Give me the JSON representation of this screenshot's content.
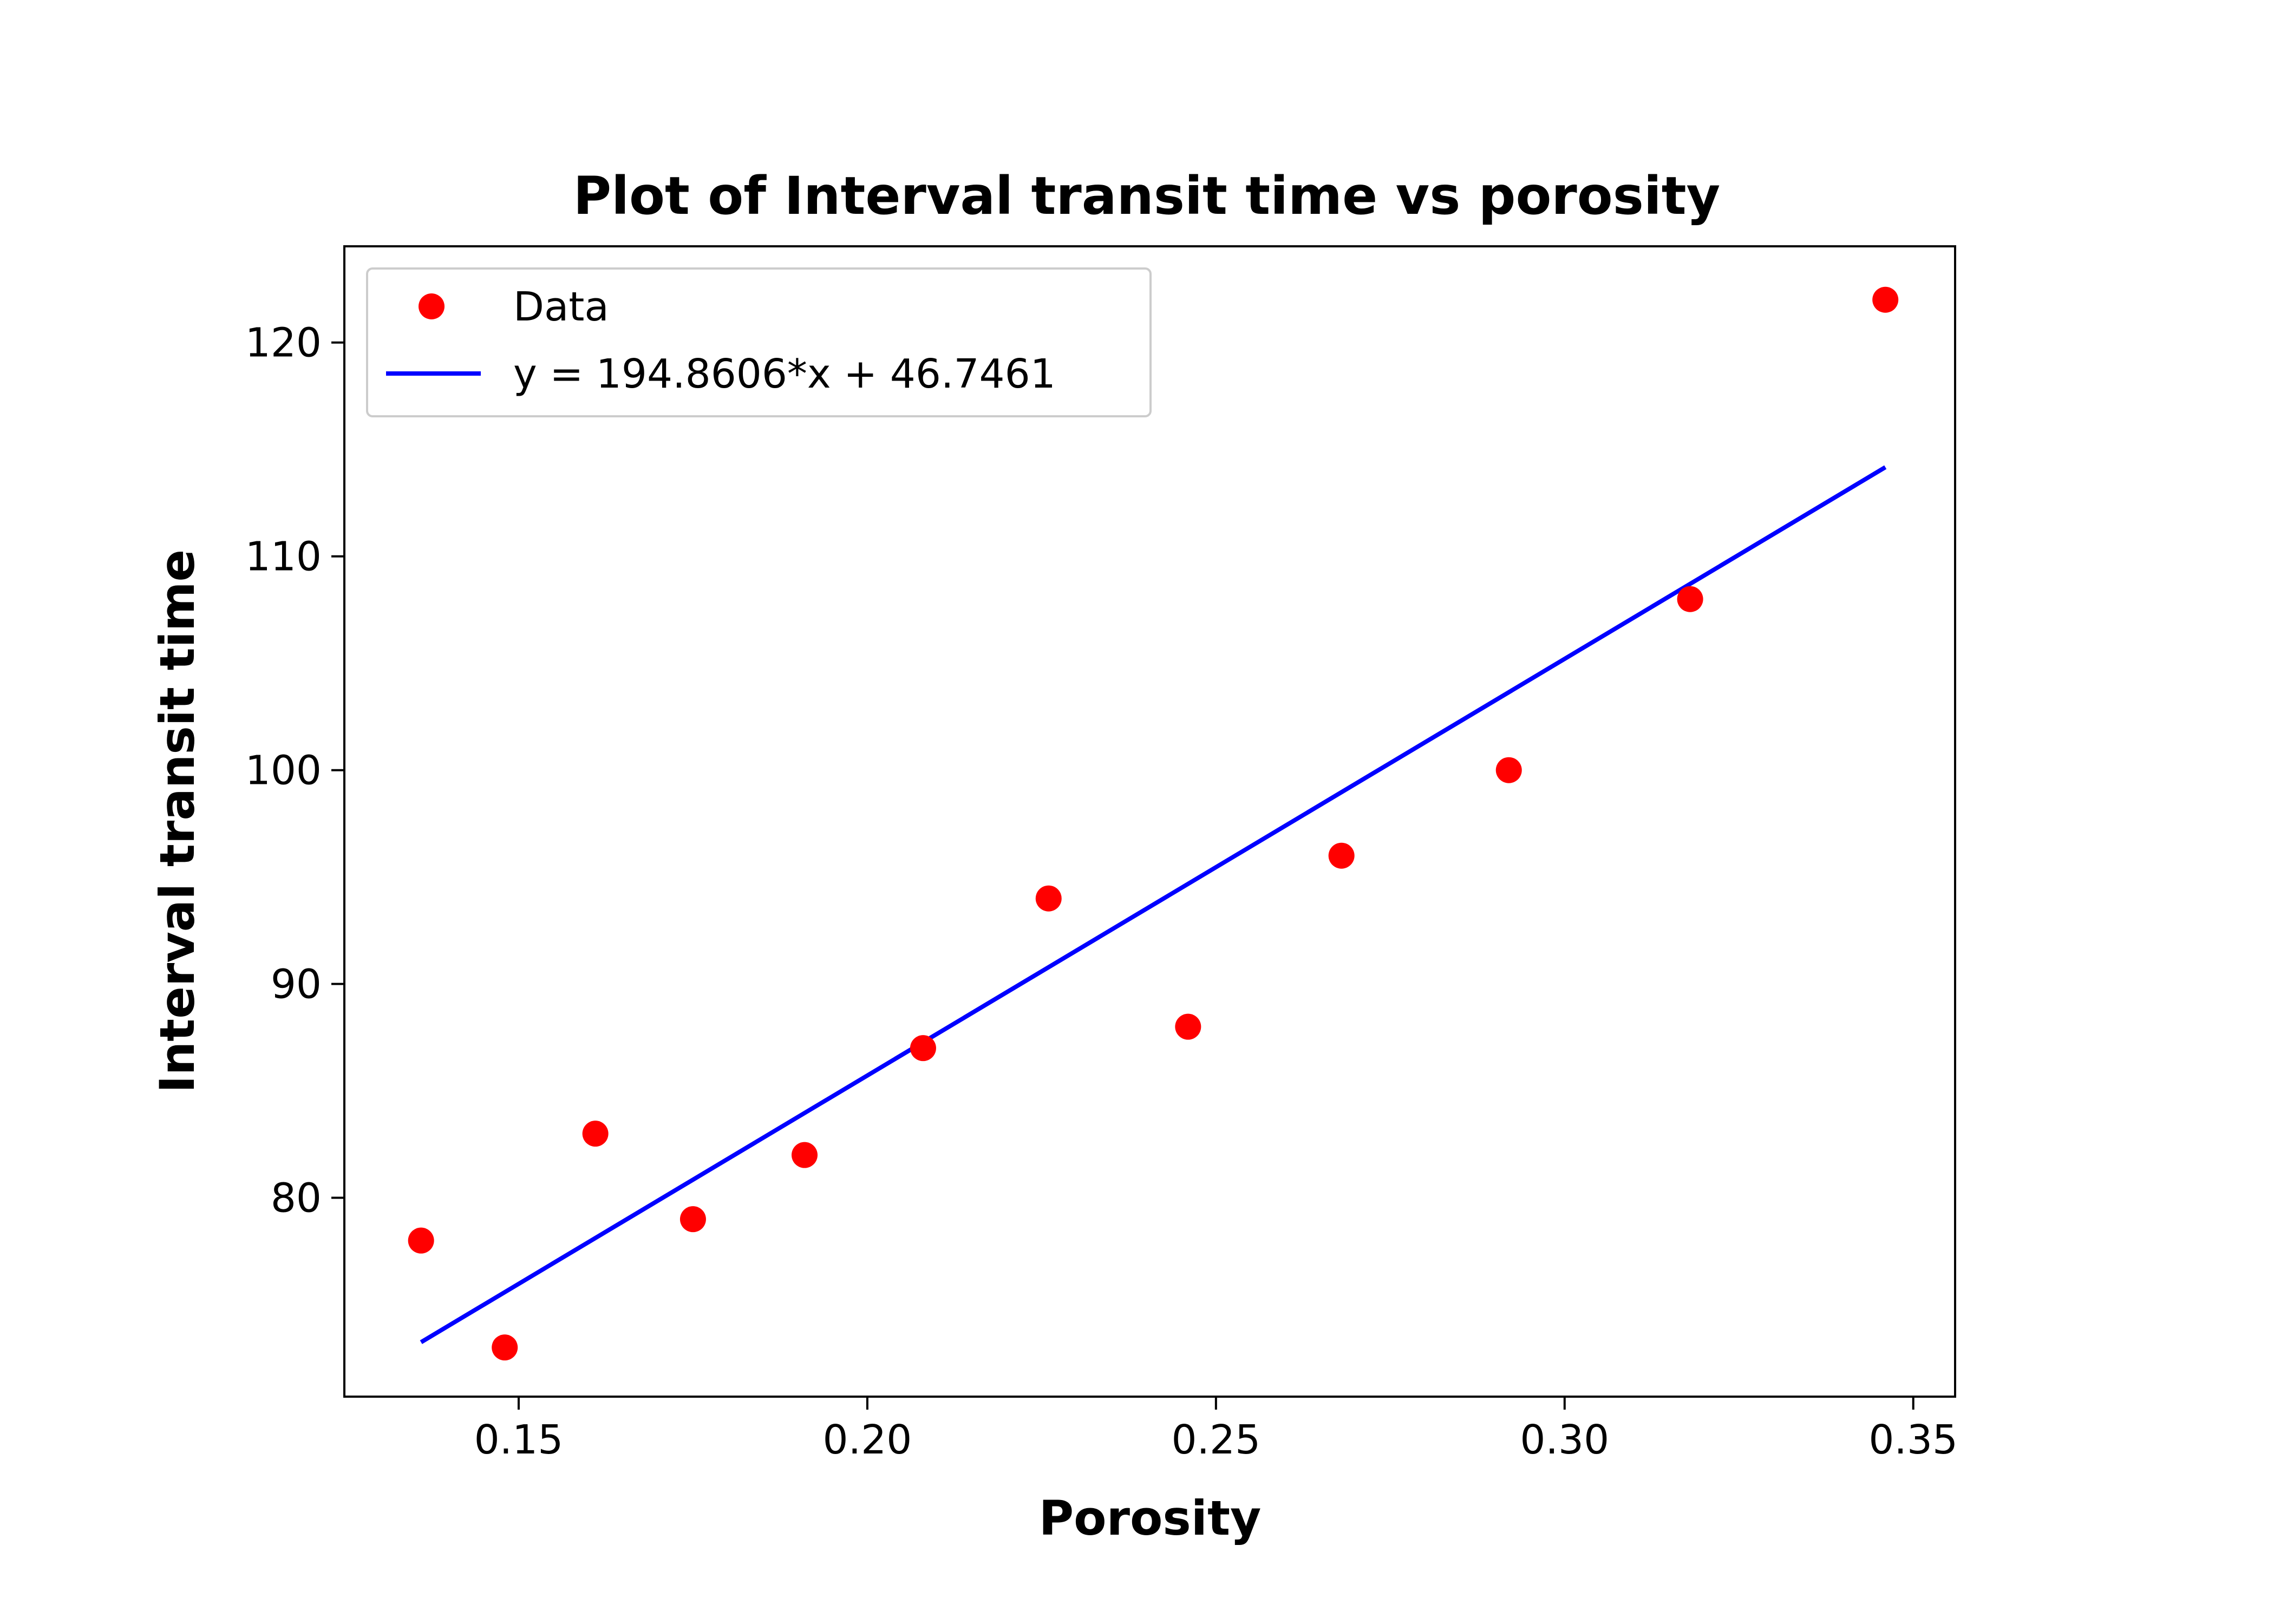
{
  "chart_data": {
    "type": "scatter",
    "title": "Plot of Interval transit time vs porosity",
    "xlabel": "Porosity",
    "ylabel": "Interval transit time",
    "xlim": [
      0.125,
      0.356
    ],
    "ylim": [
      70.7,
      124.5
    ],
    "x_ticks": [
      "0.15",
      "0.20",
      "0.25",
      "0.30",
      "0.35"
    ],
    "y_ticks": [
      "80",
      "90",
      "100",
      "110",
      "120"
    ],
    "grid": false,
    "legend_position": "top-left",
    "series": [
      {
        "name": "Data",
        "kind": "scatter",
        "color": "#ff0000",
        "x": [
          0.136,
          0.148,
          0.161,
          0.175,
          0.191,
          0.208,
          0.226,
          0.246,
          0.268,
          0.292,
          0.318,
          0.346
        ],
        "y": [
          78,
          73,
          83,
          79,
          82,
          87,
          94,
          88,
          96,
          100,
          108,
          122
        ]
      },
      {
        "name": "y = 194.8606*x + 46.7461",
        "kind": "line",
        "color": "#0000ff",
        "slope": 194.8606,
        "intercept": 46.7461,
        "x": [
          0.136,
          0.346
        ]
      }
    ]
  }
}
